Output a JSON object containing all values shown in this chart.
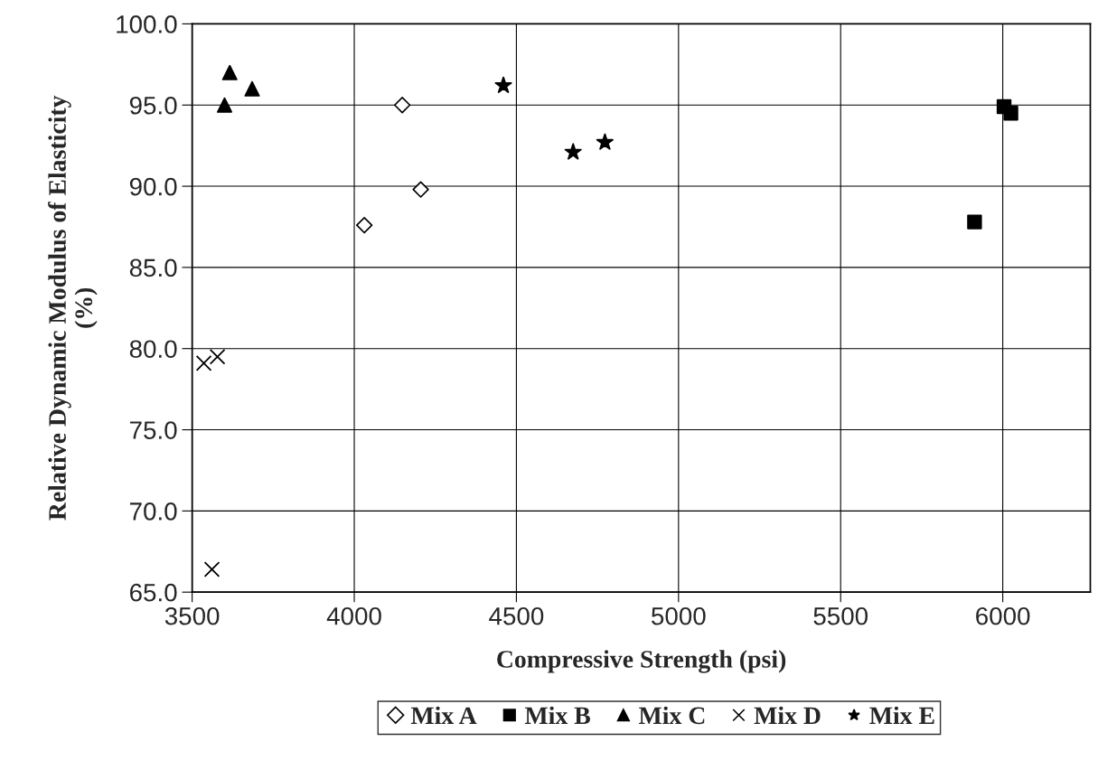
{
  "chart_data": {
    "type": "scatter",
    "xlabel": "Compressive Strength (psi)",
    "ylabel": "Relative Dynamic Modulus of Elasticity\n(%)",
    "xlim": [
      3500,
      6270
    ],
    "xticks": [
      3500,
      4000,
      4500,
      5000,
      5500,
      6000
    ],
    "ylim": [
      65,
      100
    ],
    "yticks": [
      {
        "value": 65,
        "label": "65.0"
      },
      {
        "value": 70,
        "label": "70.0"
      },
      {
        "value": 75,
        "label": "75.0"
      },
      {
        "value": 80,
        "label": "80.0"
      },
      {
        "value": 85,
        "label": "85.0"
      },
      {
        "value": 90,
        "label": "90.0"
      },
      {
        "value": 95,
        "label": "95.0"
      },
      {
        "value": 100,
        "label": "100.0"
      }
    ],
    "grid": true,
    "legend": "bottom",
    "series": [
      {
        "name": "Mix A",
        "color": "#000000",
        "marker": "diamond",
        "x": [
          4148,
          4205,
          4031
        ],
        "values": [
          95.0,
          89.8,
          87.6
        ]
      },
      {
        "name": "Mix B",
        "color": "#000000",
        "marker": "square",
        "x": [
          6004,
          6025,
          5913
        ],
        "values": [
          94.9,
          94.5,
          87.8
        ]
      },
      {
        "name": "Mix C",
        "color": "#000000",
        "marker": "triangle",
        "x": [
          3616,
          3600,
          3685
        ],
        "values": [
          97.0,
          95.0,
          96.0
        ]
      },
      {
        "name": "Mix D",
        "color": "#000000",
        "marker": "cross",
        "x": [
          3536,
          3578,
          3561
        ],
        "values": [
          79.1,
          79.5,
          66.4
        ]
      },
      {
        "name": "Mix E",
        "color": "#000000",
        "marker": "star",
        "x": [
          4460,
          4675,
          4773
        ],
        "values": [
          96.2,
          92.1,
          92.7
        ]
      }
    ]
  }
}
